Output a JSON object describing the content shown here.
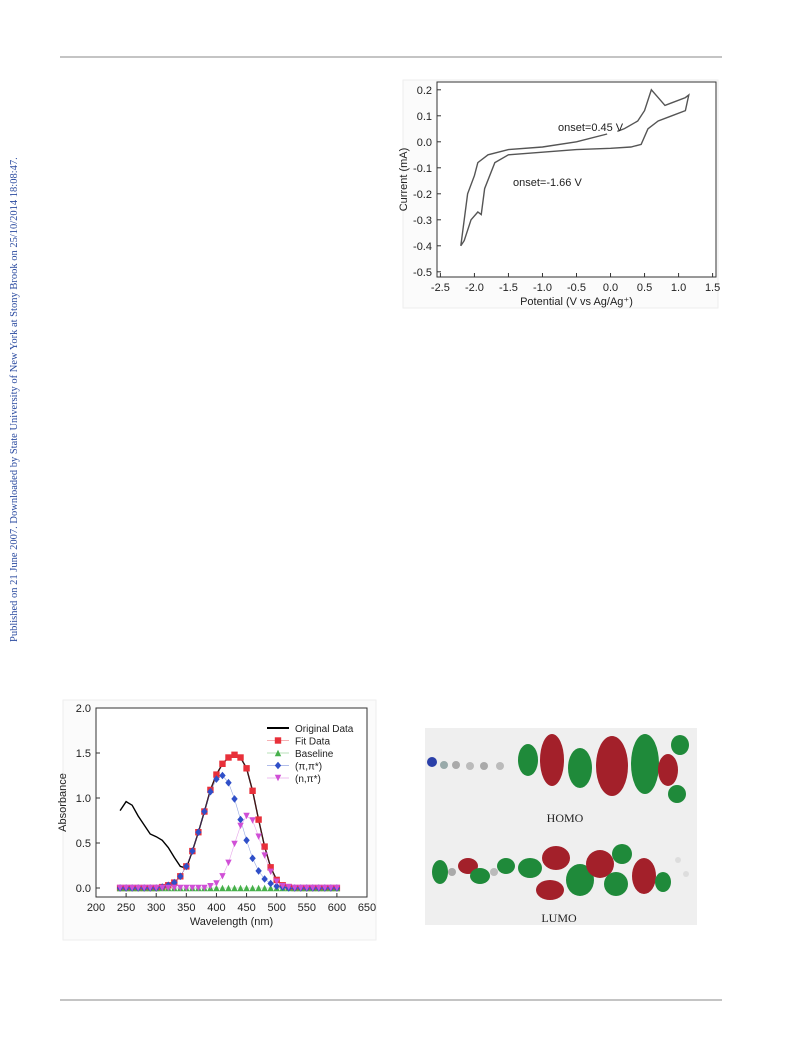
{
  "sidebar": "Published on 21 June 2007. Downloaded by State University of New York at Stony Brook on 25/10/2014 18:08:47.",
  "orbitals": {
    "labels": [
      "HOMO",
      "LUMO"
    ]
  },
  "chart_data": [
    {
      "type": "line",
      "xlabel": "Potential (V vs Ag/Ag⁺)",
      "ylabel": "Current (mA)",
      "annotations": [
        "onset=0.45 V",
        "onset=-1.66 V"
      ],
      "xlim": [
        -2.55,
        1.55
      ],
      "xticks": [
        -2.5,
        {
          "value": -2,
          "label": "-2.0"
        },
        -1.5,
        {
          "value": -1,
          "label": "-1.0"
        },
        -0.5,
        {
          "value": 0,
          "label": "0.0"
        },
        0.5,
        {
          "value": 1,
          "label": "1.0"
        },
        1.5
      ],
      "ylim": [
        -0.52,
        0.23
      ],
      "yticks": [
        -0.5,
        -0.4,
        -0.3,
        -0.2,
        -0.1,
        {
          "value": 0,
          "label": "0.0"
        },
        0.1,
        0.2
      ],
      "x": [
        -0.05,
        -0.5,
        -1.0,
        -1.5,
        -1.8,
        -1.95,
        -2.0,
        -2.1,
        -2.2,
        -2.15,
        -2.05,
        -1.95,
        -1.9,
        -1.85,
        -1.7,
        -1.5,
        -1.0,
        -0.5,
        0.0,
        0.3,
        0.45,
        0.55,
        0.7,
        0.9,
        1.1,
        1.15,
        1.1,
        0.9,
        0.8,
        0.7,
        0.6,
        0.5,
        0.4,
        0.2,
        0.1
      ],
      "series": [
        {
          "color": "#555555",
          "values": [
            0.03,
            0.0,
            -0.02,
            -0.03,
            -0.05,
            -0.08,
            -0.13,
            -0.2,
            -0.4,
            -0.38,
            -0.3,
            -0.27,
            -0.28,
            -0.18,
            -0.08,
            -0.05,
            -0.04,
            -0.03,
            -0.025,
            -0.02,
            -0.01,
            0.05,
            0.08,
            0.1,
            0.12,
            0.18,
            0.17,
            0.15,
            0.14,
            0.17,
            0.2,
            0.12,
            0.08,
            0.05,
            0.04
          ]
        }
      ]
    },
    {
      "type": "line",
      "xlabel": "Wavelength (nm)",
      "ylabel": "Absorbance",
      "legend": "upper right",
      "xlim": [
        200,
        650
      ],
      "xticks": [
        200,
        250,
        300,
        350,
        400,
        450,
        500,
        550,
        600,
        650
      ],
      "ylim": [
        -0.1,
        2.0
      ],
      "yticks": [
        {
          "value": 0,
          "label": "0.0"
        },
        0.5,
        {
          "value": 1,
          "label": "1.0"
        },
        1.5,
        {
          "value": 2,
          "label": "2.0"
        }
      ],
      "x": [
        240,
        250,
        260,
        270,
        280,
        290,
        300,
        310,
        320,
        330,
        340,
        350,
        360,
        370,
        380,
        390,
        400,
        410,
        420,
        430,
        440,
        450,
        460,
        470,
        480,
        490,
        500,
        510,
        520,
        530,
        540,
        550,
        560,
        570,
        580,
        590,
        600
      ],
      "series": [
        {
          "name": "Original Data",
          "color": "#000000",
          "marker": null,
          "values": [
            0.86,
            0.96,
            0.92,
            0.8,
            0.7,
            0.6,
            0.57,
            0.53,
            0.45,
            0.34,
            0.24,
            0.22,
            0.41,
            0.62,
            0.85,
            1.09,
            1.26,
            1.38,
            1.45,
            1.48,
            1.45,
            1.33,
            1.08,
            0.76,
            0.46,
            0.23,
            0.09,
            0.03,
            0.01,
            0,
            0,
            0,
            0,
            0,
            0,
            0,
            0
          ]
        },
        {
          "name": "Fit Data",
          "color": "#e8303a",
          "marker": "square",
          "values": [
            0,
            0,
            0,
            0,
            0,
            0,
            0,
            0.01,
            0.03,
            0.06,
            0.13,
            0.24,
            0.41,
            0.62,
            0.85,
            1.09,
            1.26,
            1.38,
            1.45,
            1.48,
            1.45,
            1.33,
            1.08,
            0.76,
            0.46,
            0.23,
            0.09,
            0.03,
            0.01,
            0,
            0,
            0,
            0,
            0,
            0,
            0,
            0
          ]
        },
        {
          "name": "Baseline",
          "color": "#46b04a",
          "marker": "triangle",
          "values": [
            0,
            0,
            0,
            0,
            0,
            0,
            0,
            0,
            0,
            0,
            0,
            0,
            0,
            0,
            0,
            0,
            0,
            0,
            0,
            0,
            0,
            0,
            0,
            0,
            0,
            0,
            0,
            0,
            0,
            0,
            0,
            0,
            0,
            0,
            0,
            0,
            0
          ]
        },
        {
          "name": "(π,π*)",
          "color": "#2f4fc8",
          "marker": "diamond",
          "values": [
            0,
            0,
            0,
            0,
            0,
            0,
            0,
            0.01,
            0.03,
            0.06,
            0.13,
            0.24,
            0.41,
            0.62,
            0.85,
            1.07,
            1.21,
            1.25,
            1.17,
            0.99,
            0.76,
            0.53,
            0.33,
            0.19,
            0.1,
            0.05,
            0.02,
            0.01,
            0,
            0,
            0,
            0,
            0,
            0,
            0,
            0,
            0
          ]
        },
        {
          "name": "(n,π*)",
          "color": "#d04fd6",
          "marker": "triangle-down",
          "values": [
            0,
            0,
            0,
            0,
            0,
            0,
            0,
            0,
            0,
            0,
            0,
            0,
            0,
            0,
            0,
            0.02,
            0.05,
            0.13,
            0.28,
            0.49,
            0.69,
            0.8,
            0.75,
            0.57,
            0.36,
            0.18,
            0.07,
            0.02,
            0.01,
            0,
            0,
            0,
            0,
            0,
            0,
            0,
            0
          ]
        }
      ]
    }
  ]
}
